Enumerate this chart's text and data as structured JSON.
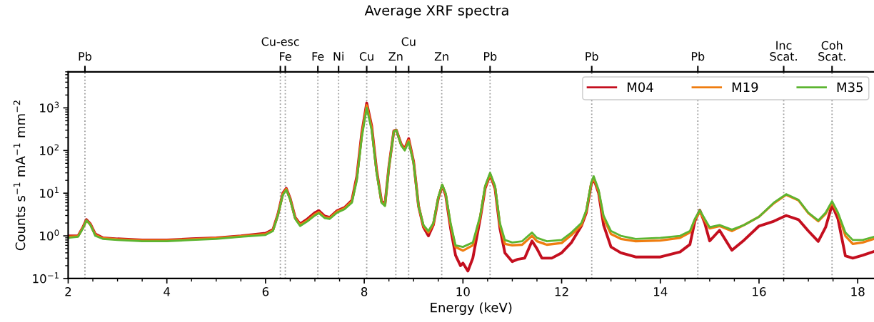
{
  "chart_data": {
    "type": "line",
    "title": "Average XRF spectra",
    "xlabel": "Energy (keV)",
    "ylabel": "Counts s$^{−1}$ mA$^{−1}$ mm$^{−2}$",
    "log": "y",
    "grid": false,
    "legend": "top right",
    "line_style": "solid",
    "marker": "none",
    "xlim": [
      2,
      18.33
    ],
    "xticks": [
      2,
      4,
      6,
      8,
      10,
      12,
      14,
      16,
      18
    ],
    "ylim": [
      0.1,
      7000
    ],
    "yticks": [
      {
        "value": 0.1,
        "label": "10$^{−1}$"
      },
      {
        "value": 1,
        "label": "10$^{0}$"
      },
      {
        "value": 10,
        "label": "10$^{1}$"
      },
      {
        "value": 100,
        "label": "10$^{2}$"
      },
      {
        "value": 1000,
        "label": "10$^{3}$"
      }
    ],
    "ref_lines": [
      {
        "axis": "x",
        "value": 2.34,
        "label": "Pb",
        "color": "#999999",
        "line_style": "dotted"
      },
      {
        "axis": "x",
        "value": 6.3,
        "label": "Cu-esc",
        "color": "#999999",
        "line_style": "dotted"
      },
      {
        "axis": "x",
        "value": 6.4,
        "label": "Fe",
        "color": "#999999",
        "line_style": "dotted"
      },
      {
        "axis": "x",
        "value": 7.06,
        "label": "Fe",
        "color": "#999999",
        "line_style": "dotted"
      },
      {
        "axis": "x",
        "value": 7.48,
        "label": "Ni",
        "color": "#999999",
        "line_style": "dotted"
      },
      {
        "axis": "x",
        "value": 8.05,
        "label": "Cu",
        "color": "#999999",
        "line_style": "dotted"
      },
      {
        "axis": "x",
        "value": 8.64,
        "label": "Zn",
        "color": "#999999",
        "line_style": "dotted"
      },
      {
        "axis": "x",
        "value": 8.9,
        "label": "Cu",
        "color": "#999999",
        "line_style": "dotted"
      },
      {
        "axis": "x",
        "value": 9.57,
        "label": "Zn",
        "color": "#999999",
        "line_style": "dotted"
      },
      {
        "axis": "x",
        "value": 10.55,
        "label": "Pb",
        "color": "#999999",
        "line_style": "dotted"
      },
      {
        "axis": "x",
        "value": 12.61,
        "label": "Pb",
        "color": "#999999",
        "line_style": "dotted"
      },
      {
        "axis": "x",
        "value": 14.76,
        "label": "Pb",
        "color": "#999999",
        "line_style": "dotted"
      },
      {
        "axis": "x",
        "value": 16.5,
        "label": "Inc\nScat.",
        "color": "#999999",
        "line_style": "dotted"
      },
      {
        "axis": "x",
        "value": 17.48,
        "label": "Coh\nScat.",
        "color": "#999999",
        "line_style": "dotted"
      }
    ],
    "series": [
      {
        "name": "M04",
        "color": "#c40f1f",
        "x": [
          2.0,
          2.2,
          2.3,
          2.37,
          2.45,
          2.55,
          2.7,
          3.0,
          3.5,
          4.0,
          4.5,
          5.0,
          5.5,
          6.0,
          6.15,
          6.25,
          6.35,
          6.42,
          6.5,
          6.6,
          6.7,
          6.85,
          7.0,
          7.08,
          7.2,
          7.3,
          7.45,
          7.6,
          7.75,
          7.85,
          7.95,
          8.05,
          8.15,
          8.25,
          8.35,
          8.42,
          8.5,
          8.6,
          8.65,
          8.75,
          8.82,
          8.9,
          9.0,
          9.1,
          9.2,
          9.3,
          9.4,
          9.5,
          9.58,
          9.65,
          9.75,
          9.85,
          9.95,
          10.0,
          10.1,
          10.2,
          10.35,
          10.45,
          10.55,
          10.65,
          10.75,
          10.85,
          11.0,
          11.1,
          11.25,
          11.4,
          11.5,
          11.6,
          11.8,
          12.0,
          12.2,
          12.4,
          12.5,
          12.6,
          12.65,
          12.75,
          12.85,
          13.0,
          13.2,
          13.5,
          14.0,
          14.4,
          14.6,
          14.7,
          14.8,
          14.9,
          15.0,
          15.2,
          15.45,
          15.7,
          16.0,
          16.3,
          16.55,
          16.8,
          17.0,
          17.2,
          17.35,
          17.48,
          17.6,
          17.75,
          17.9,
          18.1,
          18.33
        ],
        "values": [
          1.0,
          1.0,
          1.6,
          2.4,
          1.9,
          1.1,
          0.9,
          0.85,
          0.8,
          0.8,
          0.85,
          0.9,
          1.0,
          1.15,
          1.4,
          3.2,
          10,
          13,
          7.5,
          2.7,
          1.9,
          2.5,
          3.5,
          3.9,
          2.9,
          2.7,
          3.9,
          4.6,
          6.8,
          25,
          260,
          1300,
          380,
          35,
          6.5,
          5.5,
          42,
          290,
          300,
          140,
          110,
          190,
          55,
          5,
          1.6,
          1.0,
          1.8,
          7.5,
          15,
          9,
          1.5,
          0.35,
          0.2,
          0.23,
          0.15,
          0.3,
          2.5,
          13,
          27,
          13,
          1.5,
          0.4,
          0.25,
          0.28,
          0.3,
          0.76,
          0.5,
          0.3,
          0.3,
          0.4,
          0.7,
          1.7,
          3.5,
          16,
          22,
          10,
          1.8,
          0.55,
          0.4,
          0.32,
          0.32,
          0.42,
          0.63,
          2.2,
          4.0,
          2.0,
          0.76,
          1.35,
          0.46,
          0.8,
          1.7,
          2.2,
          3.0,
          2.4,
          1.3,
          0.74,
          1.6,
          5.3,
          2.5,
          0.34,
          0.3,
          0.35,
          0.43
        ]
      },
      {
        "name": "M19",
        "color": "#ef7d10",
        "x": [
          2.0,
          2.2,
          2.3,
          2.37,
          2.45,
          2.55,
          2.7,
          3.0,
          3.5,
          4.0,
          4.5,
          5.0,
          5.5,
          6.0,
          6.15,
          6.25,
          6.35,
          6.42,
          6.5,
          6.6,
          6.7,
          6.85,
          7.0,
          7.08,
          7.2,
          7.3,
          7.45,
          7.6,
          7.75,
          7.85,
          7.95,
          8.05,
          8.15,
          8.25,
          8.35,
          8.42,
          8.5,
          8.6,
          8.65,
          8.75,
          8.82,
          8.9,
          9.0,
          9.1,
          9.2,
          9.3,
          9.4,
          9.5,
          9.58,
          9.65,
          9.75,
          9.85,
          10.0,
          10.2,
          10.35,
          10.45,
          10.55,
          10.65,
          10.75,
          10.85,
          11.0,
          11.2,
          11.4,
          11.5,
          11.7,
          12.0,
          12.2,
          12.4,
          12.5,
          12.6,
          12.65,
          12.75,
          12.85,
          13.0,
          13.2,
          13.5,
          14.0,
          14.4,
          14.6,
          14.7,
          14.8,
          14.9,
          15.0,
          15.2,
          15.45,
          15.7,
          16.0,
          16.3,
          16.55,
          16.8,
          17.0,
          17.2,
          17.35,
          17.48,
          17.6,
          17.75,
          17.9,
          18.1,
          18.33
        ],
        "values": [
          0.95,
          0.98,
          1.55,
          2.3,
          1.85,
          1.05,
          0.88,
          0.83,
          0.78,
          0.78,
          0.83,
          0.88,
          0.98,
          1.1,
          1.35,
          3.1,
          9.5,
          12.5,
          7.2,
          2.6,
          1.8,
          2.3,
          3.2,
          3.6,
          2.7,
          2.6,
          3.7,
          4.4,
          6.4,
          22,
          230,
          1150,
          340,
          32,
          6.2,
          5.2,
          41,
          285,
          300,
          135,
          105,
          175,
          52,
          5,
          1.7,
          1.2,
          1.9,
          7.8,
          15.5,
          9.5,
          1.8,
          0.55,
          0.45,
          0.6,
          2.8,
          14,
          28,
          14,
          1.8,
          0.65,
          0.6,
          0.62,
          1.0,
          0.75,
          0.62,
          0.68,
          1.05,
          1.8,
          3.8,
          17,
          23,
          11,
          2.6,
          1.1,
          0.85,
          0.75,
          0.78,
          0.9,
          1.2,
          2.4,
          3.6,
          2.3,
          1.5,
          1.7,
          1.3,
          1.8,
          2.8,
          5.8,
          9.2,
          6.8,
          3.4,
          2.2,
          3.3,
          6.0,
          3.3,
          1.0,
          0.65,
          0.7,
          0.85
        ]
      },
      {
        "name": "M35",
        "color": "#5cb531",
        "x": [
          2.0,
          2.2,
          2.3,
          2.37,
          2.45,
          2.55,
          2.7,
          3.0,
          3.5,
          4.0,
          4.5,
          5.0,
          5.5,
          6.0,
          6.15,
          6.25,
          6.35,
          6.42,
          6.5,
          6.6,
          6.7,
          6.85,
          7.0,
          7.08,
          7.2,
          7.3,
          7.45,
          7.6,
          7.75,
          7.85,
          7.95,
          8.05,
          8.15,
          8.25,
          8.35,
          8.42,
          8.5,
          8.6,
          8.65,
          8.75,
          8.82,
          8.9,
          9.0,
          9.1,
          9.2,
          9.3,
          9.4,
          9.5,
          9.58,
          9.65,
          9.75,
          9.85,
          10.0,
          10.2,
          10.35,
          10.45,
          10.55,
          10.65,
          10.75,
          10.85,
          11.0,
          11.2,
          11.4,
          11.5,
          11.7,
          12.0,
          12.2,
          12.4,
          12.5,
          12.6,
          12.65,
          12.75,
          12.85,
          13.0,
          13.2,
          13.5,
          14.0,
          14.4,
          14.6,
          14.7,
          14.8,
          14.9,
          15.0,
          15.2,
          15.45,
          15.7,
          16.0,
          16.3,
          16.55,
          16.8,
          17.0,
          17.2,
          17.35,
          17.48,
          17.6,
          17.75,
          17.9,
          18.1,
          18.33
        ],
        "values": [
          0.9,
          0.95,
          1.5,
          2.3,
          1.8,
          1.0,
          0.85,
          0.8,
          0.75,
          0.75,
          0.8,
          0.85,
          0.95,
          1.05,
          1.3,
          3.0,
          9,
          12,
          7,
          2.5,
          1.7,
          2.2,
          3.0,
          3.4,
          2.6,
          2.5,
          3.5,
          4.2,
          6,
          20,
          200,
          1000,
          300,
          30,
          6,
          5,
          40,
          280,
          300,
          130,
          100,
          160,
          50,
          5,
          1.8,
          1.3,
          2,
          8,
          16,
          10,
          2,
          0.6,
          0.55,
          0.7,
          3,
          15,
          30,
          15,
          2,
          0.8,
          0.7,
          0.75,
          1.2,
          0.9,
          0.75,
          0.8,
          1.2,
          2.0,
          4,
          18,
          25,
          12,
          3,
          1.3,
          1.0,
          0.85,
          0.9,
          1.0,
          1.3,
          2.5,
          4,
          2.5,
          1.6,
          1.8,
          1.4,
          1.8,
          2.8,
          6,
          9.5,
          7,
          3.5,
          2.3,
          3.5,
          6.5,
          3.5,
          1.2,
          0.8,
          0.8,
          0.95
        ]
      }
    ]
  }
}
